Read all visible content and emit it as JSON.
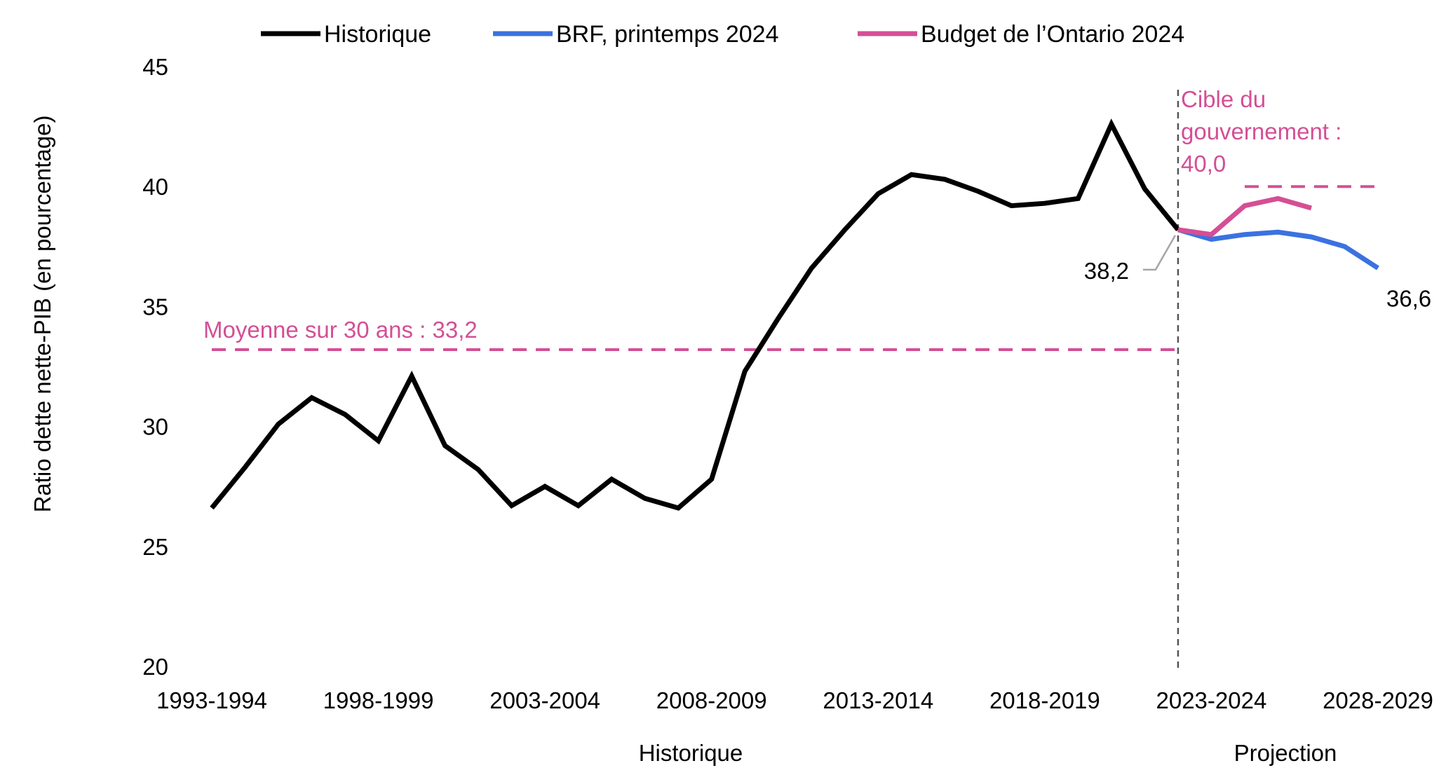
{
  "chart_data": {
    "type": "line",
    "ylabel": "Ratio dette nette-PIB (en pourcentage)",
    "ylim": [
      20,
      45
    ],
    "yticks": [
      "20",
      "25",
      "30",
      "35",
      "40",
      "45"
    ],
    "grid": false,
    "legend_position": "top",
    "x": [
      "1993-1994",
      "1994-1995",
      "1995-1996",
      "1996-1997",
      "1997-1998",
      "1998-1999",
      "1999-2000",
      "2000-2001",
      "2001-2002",
      "2002-2003",
      "2003-2004",
      "2004-2005",
      "2005-2006",
      "2006-2007",
      "2007-2008",
      "2008-2009",
      "2009-2010",
      "2010-2011",
      "2011-2012",
      "2012-2013",
      "2013-2014",
      "2014-2015",
      "2015-2016",
      "2016-2017",
      "2017-2018",
      "2018-2019",
      "2019-2020",
      "2020-2021",
      "2021-2022",
      "2022-2023",
      "2023-2024",
      "2024-2025",
      "2025-2026",
      "2026-2027",
      "2027-2028",
      "2028-2029"
    ],
    "xtick_labels": [
      "1993-1994",
      "1998-1999",
      "2003-2004",
      "2008-2009",
      "2013-2014",
      "2018-2019",
      "2023-2024",
      "2028-2029"
    ],
    "series": [
      {
        "name": "Historique",
        "color": "#000000",
        "values": [
          26.6,
          28.3,
          30.1,
          31.2,
          30.5,
          29.4,
          32.1,
          29.2,
          28.2,
          26.7,
          27.5,
          26.7,
          27.8,
          27.0,
          26.6,
          27.8,
          32.3,
          34.5,
          36.6,
          38.2,
          39.7,
          40.5,
          40.3,
          39.8,
          39.2,
          39.3,
          39.5,
          42.6,
          39.9,
          38.2,
          null,
          null,
          null,
          null,
          null,
          null
        ]
      },
      {
        "name": "BRF, printemps 2024",
        "color": "#3b72e0",
        "values": [
          null,
          null,
          null,
          null,
          null,
          null,
          null,
          null,
          null,
          null,
          null,
          null,
          null,
          null,
          null,
          null,
          null,
          null,
          null,
          null,
          null,
          null,
          null,
          null,
          null,
          null,
          null,
          null,
          null,
          38.2,
          37.8,
          38.0,
          38.1,
          37.9,
          37.5,
          36.6
        ]
      },
      {
        "name": "Budget de l’Ontario 2024",
        "color": "#d44f95",
        "values": [
          null,
          null,
          null,
          null,
          null,
          null,
          null,
          null,
          null,
          null,
          null,
          null,
          null,
          null,
          null,
          null,
          null,
          null,
          null,
          null,
          null,
          null,
          null,
          null,
          null,
          null,
          null,
          null,
          null,
          38.2,
          38.0,
          39.2,
          39.5,
          39.1,
          null,
          null
        ]
      }
    ],
    "reference_lines": [
      {
        "label": "Moyenne sur 30 ans : 33,2",
        "value": 33.2,
        "from": "1993-1994",
        "to": "2022-2023",
        "color": "#d44f95"
      },
      {
        "label_lines": [
          "Cible du",
          "gouvernement :",
          "40,0"
        ],
        "value": 40.0,
        "from": "2024-2025",
        "to": "2028-2029",
        "color": "#d44f95"
      }
    ],
    "divider": {
      "between": [
        "2022-2023",
        "2023-2024"
      ],
      "color": "#555555"
    },
    "point_labels": [
      {
        "text": "38,2",
        "x": "2022-2023",
        "y": 38.2
      },
      {
        "text": "36,6",
        "x": "2028-2029",
        "y": 36.6
      }
    ],
    "sections": [
      "Historique",
      "Projection"
    ]
  }
}
